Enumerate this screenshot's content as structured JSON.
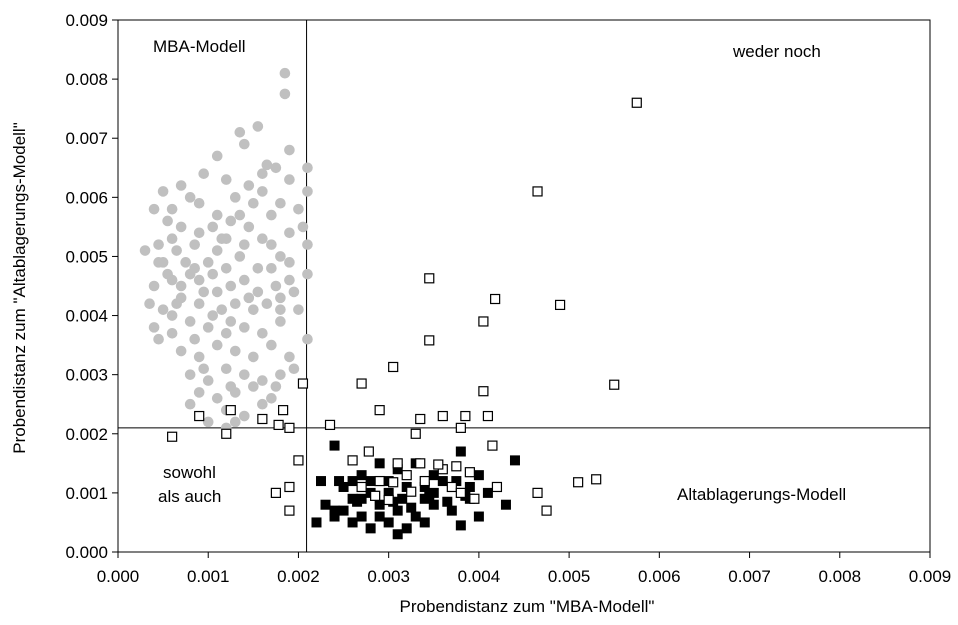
{
  "chart_data": {
    "type": "scatter",
    "title": "",
    "xlabel": "Probendistanz zum \"MBA-Modell\"",
    "ylabel": "Probendistanz zum \"Altablagerungs-Modell\"",
    "xlim": [
      0.0,
      0.009
    ],
    "ylim": [
      0.0,
      0.009
    ],
    "x_ticks": [
      "0.000",
      "0.001",
      "0.002",
      "0.003",
      "0.004",
      "0.005",
      "0.006",
      "0.007",
      "0.008",
      "0.009"
    ],
    "y_ticks": [
      "0.000",
      "0.001",
      "0.002",
      "0.003",
      "0.004",
      "0.005",
      "0.006",
      "0.007",
      "0.008",
      "0.009"
    ],
    "grid": false,
    "legend": "none",
    "reference_lines": {
      "x": 0.00209,
      "y": 0.0021
    },
    "annotations": [
      "MBA-Modell",
      "weder noch",
      "sowohl",
      "als auch",
      "Altablagerungs-Modell"
    ],
    "series": [
      {
        "marker": "gray-circle",
        "color": "#c0c0c0",
        "points": [
          [
            0.00185,
            0.0081
          ],
          [
            0.00185,
            0.00775
          ],
          [
            0.00155,
            0.0072
          ],
          [
            0.00135,
            0.0071
          ],
          [
            0.0014,
            0.0069
          ],
          [
            0.0011,
            0.0067
          ],
          [
            0.00165,
            0.00655
          ],
          [
            0.00175,
            0.0065
          ],
          [
            0.0019,
            0.0063
          ],
          [
            0.00095,
            0.0064
          ],
          [
            0.0007,
            0.0062
          ],
          [
            0.0012,
            0.0063
          ],
          [
            0.0021,
            0.0065
          ],
          [
            0.0021,
            0.0061
          ],
          [
            0.00205,
            0.0055
          ],
          [
            0.0015,
            0.0059
          ],
          [
            0.0017,
            0.0057
          ],
          [
            0.0005,
            0.0061
          ],
          [
            0.0006,
            0.0058
          ],
          [
            0.0004,
            0.0058
          ],
          [
            0.0008,
            0.006
          ],
          [
            0.0013,
            0.006
          ],
          [
            0.0016,
            0.0061
          ],
          [
            0.0018,
            0.0059
          ],
          [
            0.0011,
            0.0057
          ],
          [
            0.00045,
            0.0052
          ],
          [
            0.0003,
            0.0051
          ],
          [
            0.0005,
            0.0049
          ],
          [
            0.0007,
            0.0055
          ],
          [
            0.0009,
            0.0054
          ],
          [
            0.0012,
            0.0053
          ],
          [
            0.0014,
            0.0052
          ],
          [
            0.0016,
            0.0053
          ],
          [
            0.0019,
            0.0054
          ],
          [
            0.0021,
            0.0052
          ],
          [
            0.0021,
            0.0047
          ],
          [
            0.0004,
            0.0045
          ],
          [
            0.0006,
            0.0046
          ],
          [
            0.0008,
            0.0047
          ],
          [
            0.001,
            0.0049
          ],
          [
            0.0012,
            0.0048
          ],
          [
            0.0014,
            0.0046
          ],
          [
            0.0017,
            0.0048
          ],
          [
            0.0019,
            0.0046
          ],
          [
            0.00035,
            0.0042
          ],
          [
            0.0005,
            0.0041
          ],
          [
            0.0007,
            0.0043
          ],
          [
            0.0009,
            0.0042
          ],
          [
            0.0011,
            0.0044
          ],
          [
            0.0013,
            0.0042
          ],
          [
            0.0015,
            0.0041
          ],
          [
            0.0018,
            0.0043
          ],
          [
            0.002,
            0.0041
          ],
          [
            0.0004,
            0.0038
          ],
          [
            0.0006,
            0.0037
          ],
          [
            0.0008,
            0.0039
          ],
          [
            0.001,
            0.0038
          ],
          [
            0.0012,
            0.0037
          ],
          [
            0.0014,
            0.0038
          ],
          [
            0.0016,
            0.0037
          ],
          [
            0.0018,
            0.0039
          ],
          [
            0.0007,
            0.0034
          ],
          [
            0.0009,
            0.0033
          ],
          [
            0.0011,
            0.0035
          ],
          [
            0.0013,
            0.0034
          ],
          [
            0.0015,
            0.0033
          ],
          [
            0.0017,
            0.0035
          ],
          [
            0.0019,
            0.0033
          ],
          [
            0.0008,
            0.003
          ],
          [
            0.001,
            0.0029
          ],
          [
            0.0012,
            0.0031
          ],
          [
            0.0014,
            0.003
          ],
          [
            0.0016,
            0.0029
          ],
          [
            0.0018,
            0.003
          ],
          [
            0.0009,
            0.0027
          ],
          [
            0.0011,
            0.0026
          ],
          [
            0.0013,
            0.0027
          ],
          [
            0.0015,
            0.0028
          ],
          [
            0.0017,
            0.0026
          ],
          [
            0.0008,
            0.0025
          ],
          [
            0.0012,
            0.0024
          ],
          [
            0.0014,
            0.0023
          ],
          [
            0.0016,
            0.0025
          ],
          [
            0.001,
            0.0022
          ],
          [
            0.0012,
            0.0021
          ],
          [
            0.0013,
            0.0022
          ],
          [
            0.0006,
            0.0053
          ],
          [
            0.0007,
            0.0045
          ],
          [
            0.0009,
            0.0046
          ],
          [
            0.0011,
            0.0051
          ],
          [
            0.00125,
            0.0045
          ],
          [
            0.00085,
            0.0052
          ],
          [
            0.00095,
            0.0044
          ],
          [
            0.00115,
            0.0041
          ],
          [
            0.00075,
            0.0049
          ],
          [
            0.00105,
            0.0055
          ],
          [
            0.00065,
            0.0042
          ],
          [
            0.00135,
            0.005
          ],
          [
            0.00145,
            0.0055
          ],
          [
            0.00155,
            0.0048
          ],
          [
            0.0017,
            0.0052
          ],
          [
            0.0018,
            0.005
          ],
          [
            0.0019,
            0.0049
          ],
          [
            0.00155,
            0.0044
          ],
          [
            0.00105,
            0.0047
          ],
          [
            0.00085,
            0.0048
          ],
          [
            0.00055,
            0.0047
          ],
          [
            0.00045,
            0.0049
          ],
          [
            0.00065,
            0.0051
          ],
          [
            0.00115,
            0.0053
          ],
          [
            0.00125,
            0.0056
          ],
          [
            0.00135,
            0.0057
          ],
          [
            0.00145,
            0.0062
          ],
          [
            0.0009,
            0.0059
          ],
          [
            0.00055,
            0.0056
          ],
          [
            0.0016,
            0.0064
          ],
          [
            0.0019,
            0.0068
          ],
          [
            0.002,
            0.0058
          ],
          [
            0.00175,
            0.0045
          ],
          [
            0.00195,
            0.0044
          ],
          [
            0.0006,
            0.004
          ],
          [
            0.00045,
            0.0036
          ],
          [
            0.00085,
            0.0036
          ],
          [
            0.00105,
            0.004
          ],
          [
            0.00125,
            0.0039
          ],
          [
            0.00145,
            0.0043
          ],
          [
            0.00165,
            0.0042
          ],
          [
            0.0018,
            0.0041
          ],
          [
            0.00095,
            0.0031
          ],
          [
            0.00125,
            0.0028
          ],
          [
            0.00175,
            0.0028
          ],
          [
            0.00195,
            0.0031
          ],
          [
            0.0021,
            0.0036
          ]
        ]
      },
      {
        "marker": "black-square",
        "color": "#000000",
        "points": [
          [
            0.0024,
            0.0018
          ],
          [
            0.0027,
            0.0013
          ],
          [
            0.0029,
            0.0015
          ],
          [
            0.0031,
            0.0014
          ],
          [
            0.0033,
            0.0015
          ],
          [
            0.0035,
            0.0013
          ],
          [
            0.0038,
            0.0017
          ],
          [
            0.0044,
            0.00155
          ],
          [
            0.0025,
            0.0011
          ],
          [
            0.0026,
            0.0009
          ],
          [
            0.0028,
            0.0012
          ],
          [
            0.003,
            0.001
          ],
          [
            0.0032,
            0.0011
          ],
          [
            0.0034,
            0.0009
          ],
          [
            0.0036,
            0.0012
          ],
          [
            0.0039,
            0.0011
          ],
          [
            0.0041,
            0.001
          ],
          [
            0.0023,
            0.0008
          ],
          [
            0.0025,
            0.0007
          ],
          [
            0.0027,
            0.0006
          ],
          [
            0.0029,
            0.0008
          ],
          [
            0.0031,
            0.0007
          ],
          [
            0.0033,
            0.0006
          ],
          [
            0.0035,
            0.0008
          ],
          [
            0.0037,
            0.0007
          ],
          [
            0.004,
            0.0006
          ],
          [
            0.0043,
            0.0008
          ],
          [
            0.0022,
            0.0005
          ],
          [
            0.0024,
            0.0006
          ],
          [
            0.0026,
            0.0005
          ],
          [
            0.0028,
            0.0004
          ],
          [
            0.003,
            0.0005
          ],
          [
            0.0032,
            0.0004
          ],
          [
            0.0034,
            0.0005
          ],
          [
            0.0038,
            0.00045
          ],
          [
            0.00265,
            0.00085
          ],
          [
            0.00285,
            0.00095
          ],
          [
            0.00305,
            0.00085
          ],
          [
            0.00325,
            0.00075
          ],
          [
            0.00345,
            0.00095
          ],
          [
            0.00365,
            0.00085
          ],
          [
            0.00385,
            0.00095
          ],
          [
            0.00245,
            0.0012
          ],
          [
            0.00225,
            0.0012
          ],
          [
            0.0031,
            0.0003
          ],
          [
            0.0029,
            0.0006
          ],
          [
            0.0027,
            0.0009
          ],
          [
            0.0035,
            0.001
          ],
          [
            0.0039,
            0.0009
          ],
          [
            0.004,
            0.0013
          ],
          [
            0.00375,
            0.0012
          ],
          [
            0.0034,
            0.0011
          ],
          [
            0.00315,
            0.0009
          ],
          [
            0.0024,
            0.0007
          ],
          [
            0.0026,
            0.0012
          ],
          [
            0.0028,
            0.001
          ],
          [
            0.003,
            0.0012
          ]
        ]
      },
      {
        "marker": "open-square",
        "color": "#000000",
        "points": [
          [
            0.00575,
            0.0076
          ],
          [
            0.00465,
            0.0061
          ],
          [
            0.00345,
            0.00463
          ],
          [
            0.00418,
            0.00428
          ],
          [
            0.0049,
            0.00418
          ],
          [
            0.00405,
            0.0039
          ],
          [
            0.00345,
            0.00358
          ],
          [
            0.00305,
            0.00313
          ],
          [
            0.0027,
            0.00285
          ],
          [
            0.0055,
            0.00283
          ],
          [
            0.00405,
            0.00272
          ],
          [
            0.0029,
            0.0024
          ],
          [
            0.00335,
            0.00225
          ],
          [
            0.0036,
            0.0023
          ],
          [
            0.00385,
            0.0023
          ],
          [
            0.0041,
            0.0023
          ],
          [
            0.0038,
            0.0021
          ],
          [
            0.0033,
            0.002
          ],
          [
            0.00235,
            0.00215
          ],
          [
            0.00205,
            0.00285
          ],
          [
            0.00183,
            0.0024
          ],
          [
            0.00125,
            0.0024
          ],
          [
            0.0016,
            0.00225
          ],
          [
            0.00178,
            0.00215
          ],
          [
            0.0019,
            0.0021
          ],
          [
            0.0012,
            0.002
          ],
          [
            0.0009,
            0.0023
          ],
          [
            0.0006,
            0.00195
          ],
          [
            0.00415,
            0.0018
          ],
          [
            0.00278,
            0.0017
          ],
          [
            0.002,
            0.00155
          ],
          [
            0.0026,
            0.00155
          ],
          [
            0.0031,
            0.0015
          ],
          [
            0.00335,
            0.0015
          ],
          [
            0.0036,
            0.0014
          ],
          [
            0.00375,
            0.00145
          ],
          [
            0.0039,
            0.00135
          ],
          [
            0.0042,
            0.0011
          ],
          [
            0.0019,
            0.0011
          ],
          [
            0.00175,
            0.001
          ],
          [
            0.0019,
            0.0007
          ],
          [
            0.0029,
            0.0012
          ],
          [
            0.0032,
            0.0013
          ],
          [
            0.0034,
            0.0012
          ],
          [
            0.0037,
            0.0011
          ],
          [
            0.0038,
            0.001
          ],
          [
            0.00465,
            0.001
          ],
          [
            0.00475,
            0.0007
          ],
          [
            0.0051,
            0.00118
          ],
          [
            0.0053,
            0.00123
          ],
          [
            0.00285,
            0.00095
          ],
          [
            0.003,
            0.00088
          ],
          [
            0.0027,
            0.0011
          ],
          [
            0.00305,
            0.00118
          ],
          [
            0.00355,
            0.00148
          ],
          [
            0.00325,
            0.00102
          ],
          [
            0.00395,
            0.0009
          ]
        ]
      }
    ]
  }
}
